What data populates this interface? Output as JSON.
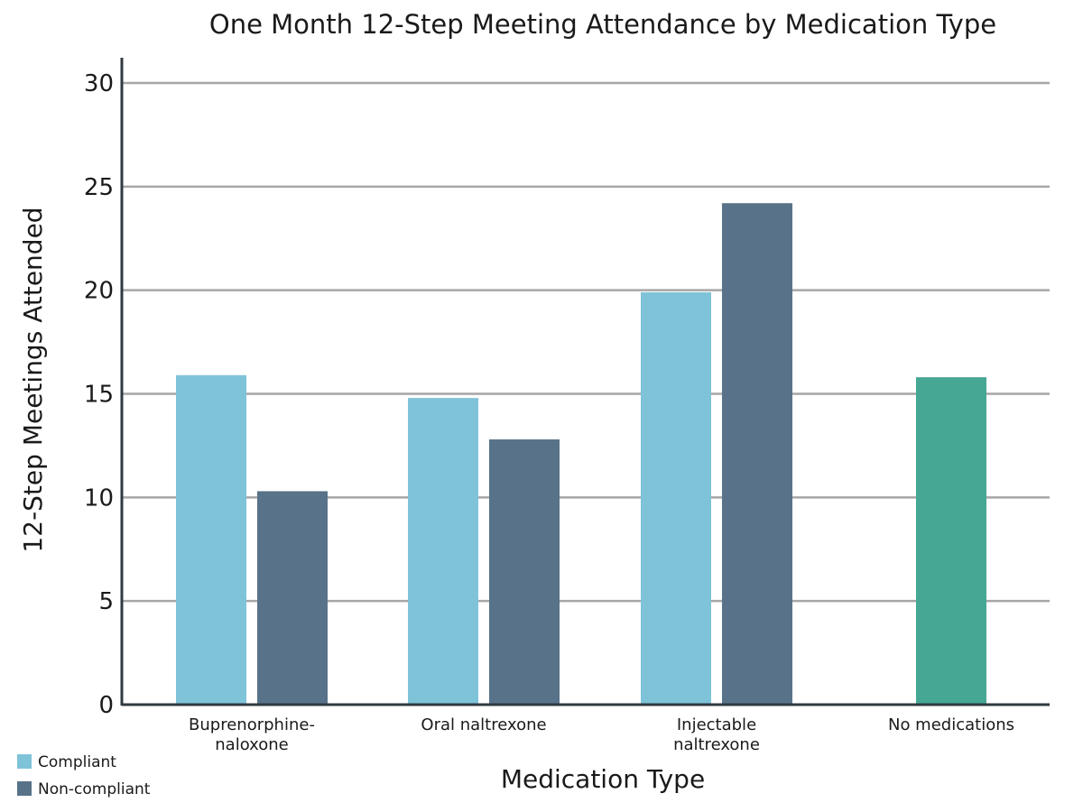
{
  "chart_data": {
    "type": "bar",
    "title": "One Month 12-Step Meeting Attendance by Medication Type",
    "xlabel": "Medication Type",
    "ylabel": "12-Step Meetings Attended",
    "ylim": [
      0,
      30
    ],
    "yticks": [
      "0",
      "5",
      "10",
      "15",
      "20",
      "25",
      "30"
    ],
    "grid": true,
    "legend_position": "bottom-left",
    "categories": [
      [
        "Buprenorphine-",
        "naloxone"
      ],
      [
        "Oral naltrexone"
      ],
      [
        "Injectable",
        "naltrexone"
      ],
      [
        "No medications"
      ]
    ],
    "series": [
      {
        "name": "Compliant",
        "color": "#7fc3d9",
        "values": [
          15.9,
          14.8,
          19.9,
          null
        ]
      },
      {
        "name": "Non-compliant",
        "color": "#587389",
        "values": [
          10.3,
          12.8,
          24.2,
          null
        ]
      }
    ],
    "extra_bars": [
      {
        "category_index": 3,
        "value": 15.8,
        "color": "#45a794"
      }
    ]
  }
}
